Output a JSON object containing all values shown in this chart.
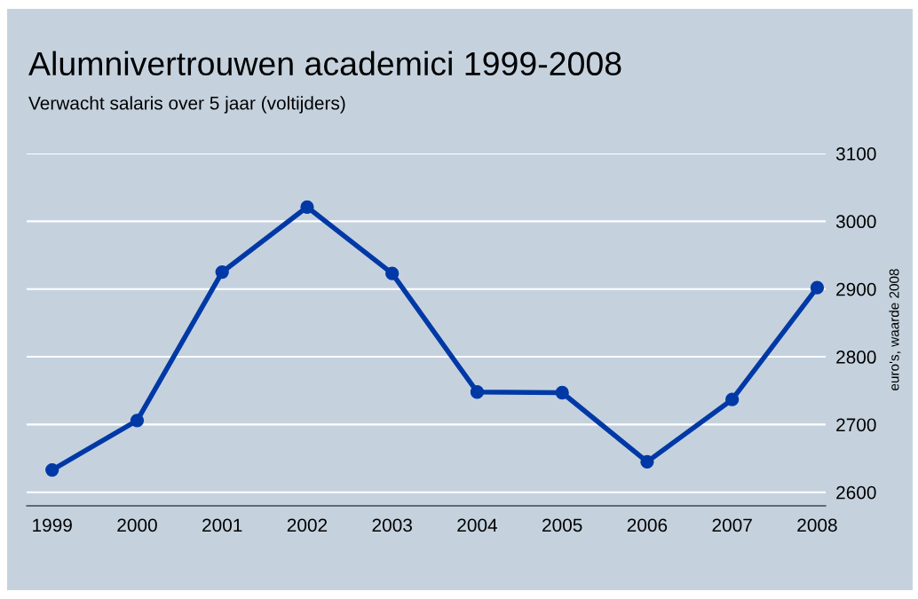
{
  "chart_data": {
    "type": "line",
    "title": "Alumnivertrouwen academici 1999-2008",
    "subtitle": "Verwacht salaris over 5 jaar (voltijders)",
    "y2label": "euro's, waarde 2008",
    "categories": [
      "1999",
      "2000",
      "2001",
      "2002",
      "2003",
      "2004",
      "2005",
      "2006",
      "2007",
      "2008"
    ],
    "series": [
      {
        "color": "#0039a6",
        "axis": "y2",
        "values": [
          2633,
          2706,
          2925,
          3021,
          2923,
          2748,
          2747,
          2645,
          2737,
          2902
        ]
      }
    ],
    "y2lim": [
      2580,
      3100
    ],
    "y2ticks": [
      2600,
      2700,
      2800,
      2900,
      3000,
      3100
    ],
    "grid": "y",
    "marker": "circle",
    "line_style": "solid",
    "legend": false
  }
}
